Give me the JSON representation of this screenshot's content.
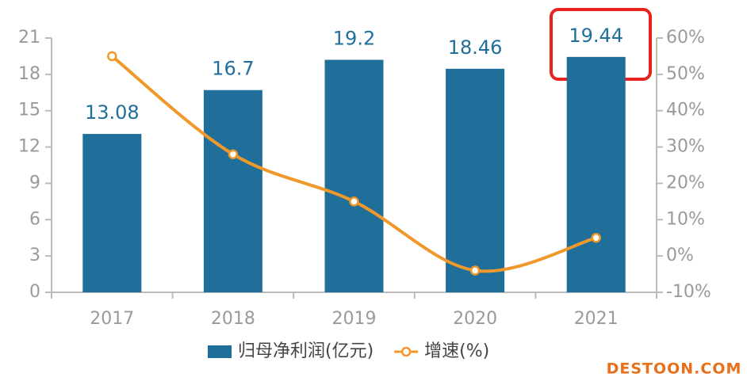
{
  "chart_data": {
    "type": "bar",
    "categories": [
      "2017",
      "2018",
      "2019",
      "2020",
      "2021"
    ],
    "series": [
      {
        "name": "归母净利润(亿元)",
        "type": "bar",
        "color": "#1f6f9a",
        "values": [
          13.08,
          16.7,
          19.2,
          18.46,
          19.44
        ]
      },
      {
        "name": "增速(%)",
        "type": "line",
        "axis": "y2",
        "color": "#f0982a",
        "values": [
          55,
          28,
          15,
          -4,
          5
        ]
      }
    ],
    "ylim": [
      0,
      21
    ],
    "yticks": [
      0,
      3,
      6,
      9,
      12,
      15,
      18,
      21
    ],
    "y2lim": [
      -10,
      60
    ],
    "y2ticks": [
      {
        "value": -10,
        "label": "-10%"
      },
      {
        "value": 0,
        "label": "0%"
      },
      {
        "value": 10,
        "label": "10%"
      },
      {
        "value": 20,
        "label": "20%"
      },
      {
        "value": 30,
        "label": "30%"
      },
      {
        "value": 40,
        "label": "40%"
      },
      {
        "value": 50,
        "label": "50%"
      },
      {
        "value": 60,
        "label": "60%"
      }
    ],
    "legend": "bottom",
    "watermark": "DESTOON.COM"
  }
}
